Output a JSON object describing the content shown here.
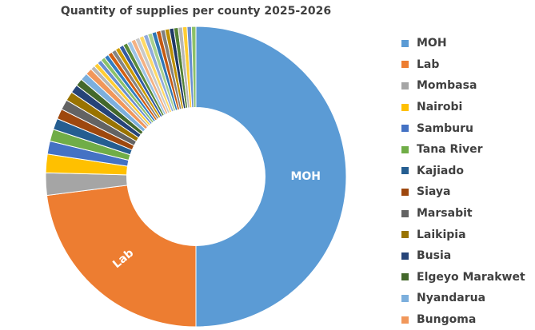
{
  "chart_data": {
    "type": "pie",
    "variant": "doughnut",
    "title": "Quantity of supplies per county 2025-2026",
    "categories": [
      "MOH",
      "Lab",
      "Mombasa",
      "Nairobi",
      "Samburu",
      "Tana River",
      "Kajiado",
      "Siaya",
      "Marsabit",
      "Laikipia",
      "Busia",
      "Elgeyo Marakwet",
      "Nyandarua",
      "Bungoma"
    ],
    "values": [
      50,
      23,
      2.4,
      2.0,
      1.4,
      1.3,
      1.2,
      1.1,
      1.1,
      1.0,
      0.9,
      0.8,
      0.8,
      0.7
    ],
    "colors": [
      "#5B9BD5",
      "#ED7D31",
      "#A5A5A5",
      "#FFC000",
      "#4472C4",
      "#70AD47",
      "#255E91",
      "#9E480E",
      "#636363",
      "#997300",
      "#264478",
      "#43682B",
      "#7CAFDD",
      "#F1975A"
    ],
    "extra_slice_colors": [
      "#B7B7B7",
      "#FFCD33",
      "#698ED0",
      "#8CC168",
      "#327DC2",
      "#D26012",
      "#848484",
      "#CC9A00",
      "#335AA1",
      "#5A8A39",
      "#9DC3E6",
      "#F4B183",
      "#C9C9C9",
      "#FFD966",
      "#8FAADC",
      "#A9D18E",
      "#2E75B6",
      "#C55A11",
      "#7F7F7F",
      "#BF9000",
      "#1F3864",
      "#548235"
    ],
    "slice_labels": [
      {
        "category": "MOH",
        "text": "MOH"
      },
      {
        "category": "Lab",
        "text": "Lab"
      }
    ],
    "legend_position": "right",
    "hole_ratio": 0.46
  }
}
